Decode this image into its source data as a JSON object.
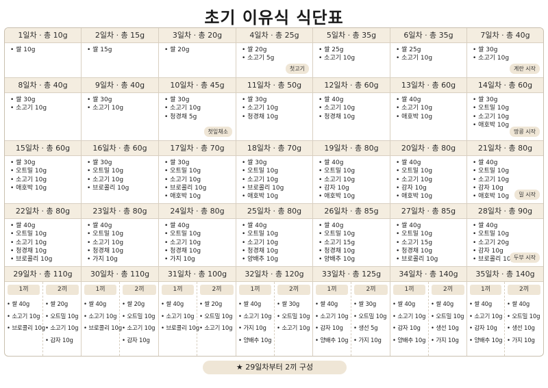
{
  "title": "초기 이유식 식단표",
  "footer_note": "★  29일차부터 2끼 구성",
  "days": [
    {
      "header": "1일차 · 총 10g",
      "items": [
        "쌀 10g"
      ]
    },
    {
      "header": "2일차 · 총 15g",
      "items": [
        "쌀 15g"
      ]
    },
    {
      "header": "3일차 · 총 20g",
      "items": [
        "쌀 20g"
      ]
    },
    {
      "header": "4일차 · 총 25g",
      "items": [
        "쌀 20g",
        "소고기 5g"
      ],
      "badge": "첫고기"
    },
    {
      "header": "5일차 · 총 35g",
      "items": [
        "쌀 25g",
        "소고기 10g"
      ]
    },
    {
      "header": "6일차 · 총 35g",
      "items": [
        "쌀 25g",
        "소고기 10g"
      ]
    },
    {
      "header": "7일차 · 총 40g",
      "items": [
        "쌀 30g",
        "소고기 10g"
      ],
      "badge": "계란 시작"
    },
    {
      "header": "8일차 · 총 40g",
      "items": [
        "쌀 30g",
        "소고기 10g"
      ]
    },
    {
      "header": "9일차 · 총 40g",
      "items": [
        "쌀 30g",
        "소고기 10g"
      ]
    },
    {
      "header": "10일차 · 총 45g",
      "items": [
        "쌀 30g",
        "소고기 10g",
        "청경채 5g"
      ],
      "badge": "첫잎채소"
    },
    {
      "header": "11일차 · 총 50g",
      "items": [
        "쌀 30g",
        "소고기 10g",
        "청경채 10g"
      ]
    },
    {
      "header": "12일차 · 총 60g",
      "items": [
        "쌀 40g",
        "소고기 10g",
        "청경채 10g"
      ]
    },
    {
      "header": "13일차 · 총 60g",
      "items": [
        "쌀 40g",
        "소고기 10g",
        "애호박 10g"
      ]
    },
    {
      "header": "14일차 · 총 60g",
      "items": [
        "쌀 30g",
        "오트밀 10g",
        "소고기 10g",
        "애호박 10g"
      ],
      "badge": "땅콩 시작"
    },
    {
      "header": "15일차 · 총 60g",
      "items": [
        "쌀 30g",
        "오트밀 10g",
        "소고기 10g",
        "애호박 10g"
      ]
    },
    {
      "header": "16일차 · 총 60g",
      "items": [
        "쌀 30g",
        "오트밀 10g",
        "소고기 10g",
        "브로콜리 10g"
      ]
    },
    {
      "header": "17일차 · 총 70g",
      "items": [
        "쌀 30g",
        "오트밀 10g",
        "소고기 10g",
        "브로콜리 10g",
        "애호박 10g"
      ]
    },
    {
      "header": "18일차 · 총 70g",
      "items": [
        "쌀 30g",
        "오트밀 10g",
        "소고기 10g",
        "브로콜리 10g",
        "애호박 10g"
      ]
    },
    {
      "header": "19일차 · 총 80g",
      "items": [
        "쌀 40g",
        "오트밀 10g",
        "소고기 10g",
        "감자 10g",
        "애호박 10g"
      ]
    },
    {
      "header": "20일차 · 총 80g",
      "items": [
        "쌀 40g",
        "오트밀 10g",
        "소고기 10g",
        "감자 10g",
        "애호박 10g"
      ]
    },
    {
      "header": "21일차 · 총 80g",
      "items": [
        "쌀 40g",
        "오트밀 10g",
        "소고기 10g",
        "감자 10g",
        "애호박 10g"
      ],
      "badge": "밀 시작"
    },
    {
      "header": "22일차 · 총 80g",
      "items": [
        "쌀 40g",
        "오트밀 10g",
        "소고기 10g",
        "청경채 10g",
        "브로콜리 10g"
      ]
    },
    {
      "header": "23일차 · 총 80g",
      "items": [
        "쌀 40g",
        "오트밀 10g",
        "소고기 10g",
        "청경채 10g",
        "가지 10g"
      ]
    },
    {
      "header": "24일차 · 총 80g",
      "items": [
        "쌀 40g",
        "오트밀 10g",
        "소고기 10g",
        "청경채 10g",
        "가지 10g"
      ]
    },
    {
      "header": "25일차 · 총 80g",
      "items": [
        "쌀 40g",
        "오트밀 10g",
        "소고기 10g",
        "청경채 10g",
        "양배추 10g"
      ]
    },
    {
      "header": "26일차 · 총 85g",
      "items": [
        "쌀 40g",
        "오트밀 10g",
        "소고기 15g",
        "청경채 10g",
        "양배추 10g"
      ]
    },
    {
      "header": "27일차 · 총 85g",
      "items": [
        "쌀 40g",
        "오트밀 10g",
        "소고기 15g",
        "청경채 10g",
        "브로콜리 10g"
      ]
    },
    {
      "header": "28일차 · 총 90g",
      "items": [
        "쌀 40g",
        "오트밀 10g",
        "소고기 20g",
        "감자 10g",
        "브로콜리 10g"
      ],
      "badge": "두부 시작"
    }
  ],
  "two_meal_days": [
    {
      "header": "29일차 · 총 110g",
      "meal1": {
        "label": "1끼",
        "items": [
          "쌀 40g",
          "소고기 10g",
          "브로콜리 10g"
        ]
      },
      "meal2": {
        "label": "2끼",
        "items": [
          "쌀 20g",
          "오트밀 10g",
          "소고기 10g",
          "감자 10g"
        ]
      }
    },
    {
      "header": "30일차 · 총 110g",
      "meal1": {
        "label": "1끼",
        "items": [
          "쌀 40g",
          "소고기 10g",
          "브로콜리 10g"
        ]
      },
      "meal2": {
        "label": "2끼",
        "items": [
          "쌀 20g",
          "오트밀 10g",
          "소고기 10g",
          "감자 10g"
        ]
      }
    },
    {
      "header": "31일차 · 총 100g",
      "meal1": {
        "label": "1끼",
        "items": [
          "쌀 40g",
          "소고기 10g",
          "브로콜리 10g"
        ]
      },
      "meal2": {
        "label": "2끼",
        "items": [
          "쌀 20g",
          "오트밀 10g",
          "소고기 10g"
        ]
      }
    },
    {
      "header": "32일차 · 총 120g",
      "meal1": {
        "label": "1끼",
        "items": [
          "쌀 40g",
          "소고기 10g",
          "가지 10g",
          "양배추 10g"
        ]
      },
      "meal2": {
        "label": "2끼",
        "items": [
          "쌀 30g",
          "오트밀 10g",
          "소고기 10g"
        ]
      }
    },
    {
      "header": "33일차 · 총 125g",
      "meal1": {
        "label": "1끼",
        "items": [
          "쌀 40g",
          "소고기 10g",
          "감자 10g",
          "양배추 10g"
        ]
      },
      "meal2": {
        "label": "2끼",
        "items": [
          "쌀 30g",
          "오트밀 10g",
          "생선 5g",
          "가지 10g"
        ]
      }
    },
    {
      "header": "34일차 · 총 140g",
      "meal1": {
        "label": "1끼",
        "items": [
          "쌀 40g",
          "소고기 10g",
          "감자 10g",
          "양배추 10g"
        ]
      },
      "meal2": {
        "label": "2끼",
        "items": [
          "쌀 40g",
          "오트밀 10g",
          "생선 10g",
          "가지 10g"
        ]
      }
    },
    {
      "header": "35일차 · 총 140g",
      "meal1": {
        "label": "1끼",
        "items": [
          "쌀 40g",
          "소고기 10g",
          "감자 10g",
          "양배추 10g"
        ]
      },
      "meal2": {
        "label": "2끼",
        "items": [
          "쌀 40g",
          "오트밀 10g",
          "생선 10g",
          "가지 10g"
        ]
      }
    }
  ]
}
